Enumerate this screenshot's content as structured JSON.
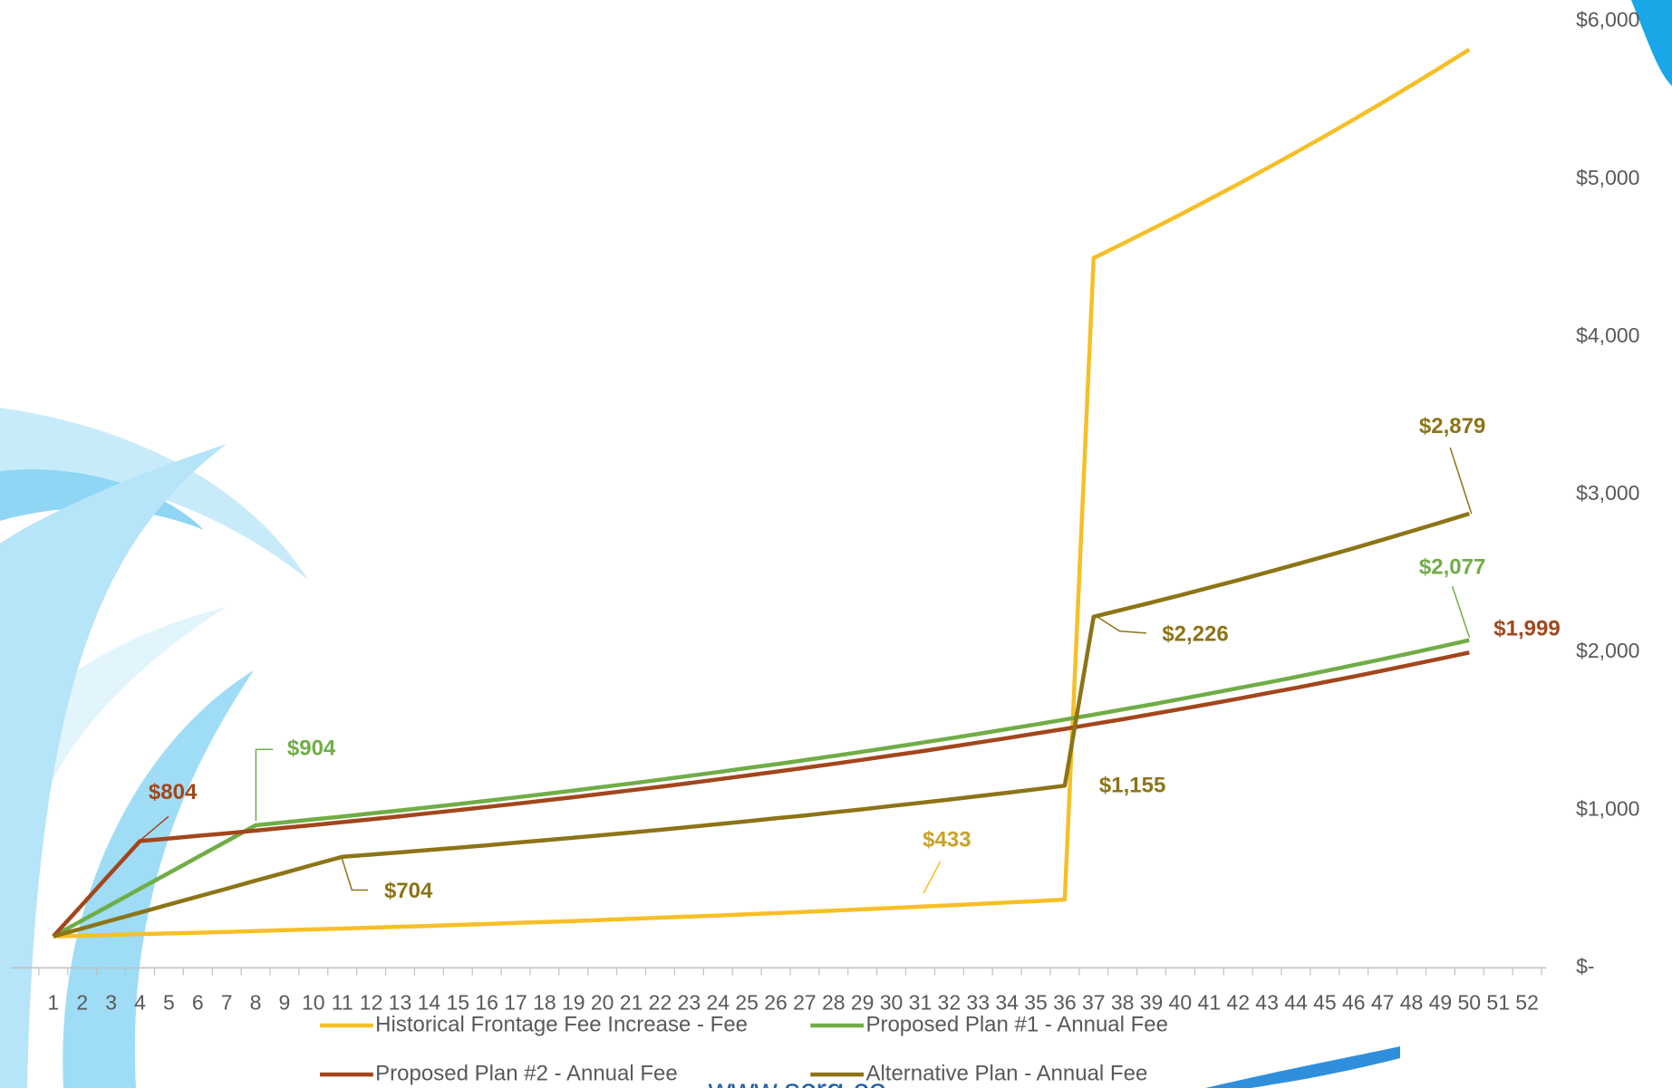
{
  "chart_data": {
    "type": "line",
    "categories": [
      1,
      2,
      3,
      4,
      5,
      6,
      7,
      8,
      9,
      10,
      11,
      12,
      13,
      14,
      15,
      16,
      17,
      18,
      19,
      20,
      21,
      22,
      23,
      24,
      25,
      26,
      27,
      28,
      29,
      30,
      31,
      32,
      33,
      34,
      35,
      36,
      37,
      38,
      39,
      40,
      41,
      42,
      43,
      44,
      45,
      46,
      47,
      48,
      49,
      50,
      51,
      52
    ],
    "series": [
      {
        "name": "Historical Frontage Fee Increase - Fee",
        "color": "#f5bf26",
        "values": [
          200,
          204,
          209,
          214,
          218,
          223,
          228,
          233,
          239,
          244,
          249,
          255,
          261,
          266,
          272,
          278,
          285,
          291,
          297,
          304,
          311,
          318,
          325,
          332,
          340,
          347,
          355,
          363,
          371,
          379,
          388,
          396,
          405,
          414,
          423,
          433,
          4500,
          4590,
          4682,
          4775,
          4871,
          4968,
          5068,
          5169,
          5272,
          5378,
          5485,
          5595,
          5707,
          5821,
          null,
          null
        ],
        "value_labels": [
          null,
          null,
          null,
          null,
          null,
          null,
          null,
          null,
          null,
          null,
          null,
          null,
          null,
          null,
          null,
          null,
          null,
          null,
          null,
          null,
          null,
          null,
          null,
          null,
          null,
          null,
          null,
          null,
          null,
          null,
          null,
          null,
          null,
          null,
          null,
          "$433",
          null,
          null,
          null,
          null,
          null,
          null,
          null,
          null,
          null,
          null,
          null,
          null,
          null,
          null,
          null,
          null
        ],
        "label_color": "#c9a227"
      },
      {
        "name": "Proposed Plan #1 - Annual Fee",
        "color": "#70ad47",
        "values": [
          200,
          301,
          401,
          502,
          602,
          703,
          803,
          904,
          922,
          941,
          959,
          979,
          998,
          1018,
          1038,
          1059,
          1080,
          1102,
          1124,
          1147,
          1169,
          1193,
          1217,
          1241,
          1266,
          1291,
          1317,
          1343,
          1370,
          1398,
          1426,
          1454,
          1483,
          1513,
          1543,
          1574,
          1605,
          1638,
          1670,
          1704,
          1738,
          1773,
          1808,
          1844,
          1881,
          1919,
          1957,
          1996,
          2036,
          2077,
          null,
          null
        ],
        "value_labels": [
          null,
          null,
          null,
          null,
          null,
          null,
          null,
          "$904",
          null,
          null,
          null,
          null,
          null,
          null,
          null,
          null,
          null,
          null,
          null,
          null,
          null,
          null,
          null,
          null,
          null,
          null,
          null,
          null,
          null,
          null,
          null,
          null,
          null,
          null,
          null,
          null,
          null,
          null,
          null,
          null,
          null,
          null,
          null,
          null,
          null,
          null,
          null,
          null,
          null,
          "$2,077",
          null,
          null
        ],
        "label_color": "#70ad47"
      },
      {
        "name": "Proposed Plan #2 - Annual Fee",
        "color": "#a3461c",
        "values": [
          200,
          401,
          603,
          804,
          820,
          837,
          853,
          870,
          888,
          905,
          924,
          942,
          961,
          980,
          1000,
          1020,
          1040,
          1061,
          1082,
          1104,
          1126,
          1148,
          1171,
          1195,
          1219,
          1243,
          1268,
          1293,
          1319,
          1346,
          1372,
          1400,
          1428,
          1456,
          1486,
          1515,
          1546,
          1576,
          1608,
          1640,
          1673,
          1706,
          1741,
          1775,
          1811,
          1847,
          1884,
          1922,
          1960,
          1999,
          null,
          null
        ],
        "value_labels": [
          null,
          null,
          null,
          "$804",
          null,
          null,
          null,
          null,
          null,
          null,
          null,
          null,
          null,
          null,
          null,
          null,
          null,
          null,
          null,
          null,
          null,
          null,
          null,
          null,
          null,
          null,
          null,
          null,
          null,
          null,
          null,
          null,
          null,
          null,
          null,
          null,
          null,
          null,
          null,
          null,
          null,
          null,
          null,
          null,
          null,
          null,
          null,
          null,
          null,
          "$1,999",
          null,
          null
        ],
        "label_color": "#a3461c"
      },
      {
        "name": "Alternative Plan - Annual Fee",
        "color": "#8c7417",
        "values": [
          200,
          250,
          301,
          351,
          402,
          452,
          502,
          553,
          603,
          654,
          704,
          718,
          732,
          747,
          762,
          777,
          793,
          809,
          825,
          841,
          858,
          875,
          893,
          911,
          929,
          948,
          966,
          986,
          1005,
          1026,
          1046,
          1067,
          1088,
          1110,
          1132,
          1155,
          2226,
          2271,
          2316,
          2362,
          2410,
          2458,
          2507,
          2557,
          2608,
          2660,
          2714,
          2768,
          2823,
          2879,
          null,
          null
        ],
        "value_labels": [
          null,
          null,
          null,
          null,
          null,
          null,
          null,
          null,
          null,
          null,
          "$704",
          null,
          null,
          null,
          null,
          null,
          null,
          null,
          null,
          null,
          null,
          null,
          null,
          null,
          null,
          null,
          null,
          null,
          null,
          null,
          null,
          null,
          null,
          null,
          null,
          "$1,155",
          "$2,226",
          null,
          null,
          null,
          null,
          null,
          null,
          null,
          null,
          null,
          null,
          null,
          null,
          "$2,879",
          null,
          null
        ],
        "label_color": "#8c7417"
      }
    ],
    "ylim": [
      0,
      6000
    ],
    "yticks": [
      {
        "value": 0,
        "label": "$-"
      },
      {
        "value": 1000,
        "label": "$1,000"
      },
      {
        "value": 2000,
        "label": "$2,000"
      },
      {
        "value": 3000,
        "label": "$3,000"
      },
      {
        "value": 4000,
        "label": "$4,000"
      },
      {
        "value": 5000,
        "label": "$5,000"
      },
      {
        "value": 6000,
        "label": "$6,000"
      }
    ],
    "grid": false,
    "legend": "bottom",
    "watermark": "www.scrg.co"
  }
}
